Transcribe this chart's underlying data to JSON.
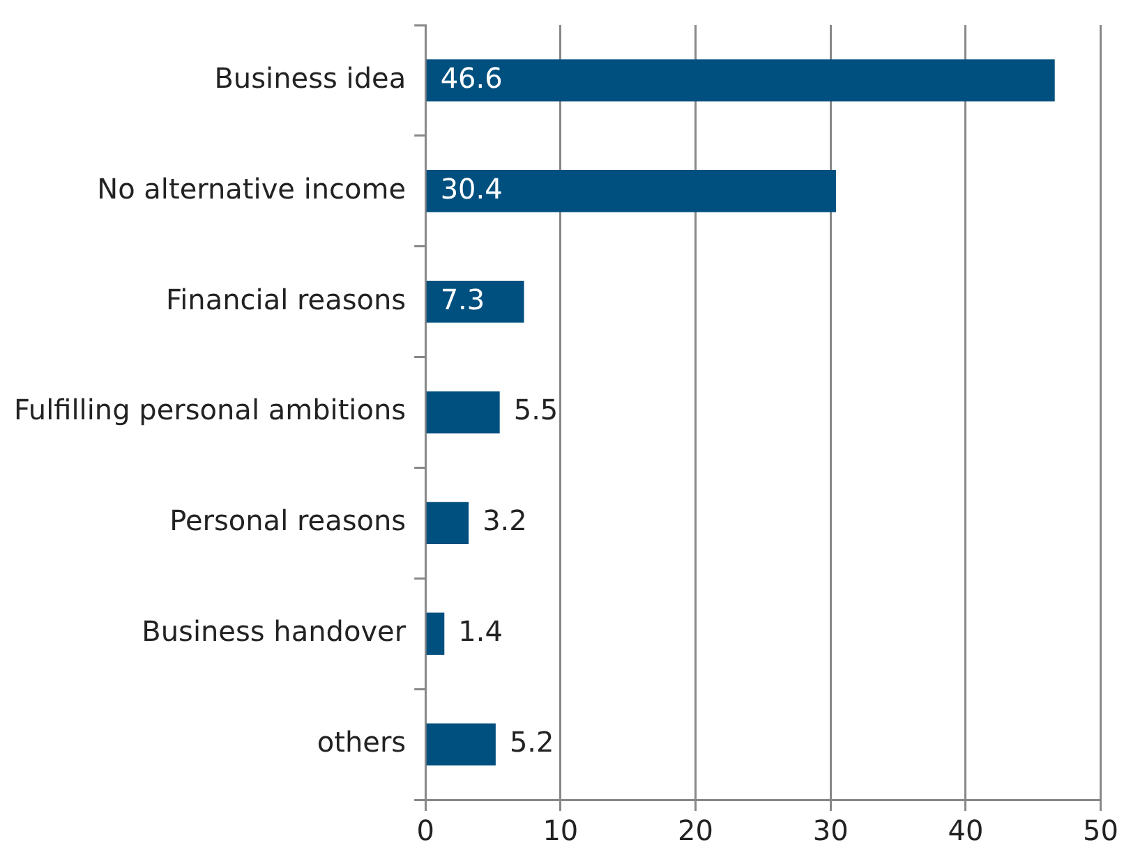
{
  "chart_data": {
    "type": "bar",
    "orientation": "horizontal",
    "categories": [
      "Business idea",
      "No alternative income",
      "Financial reasons",
      "Fulfilling personal ambitions",
      "Personal reasons",
      "Business handover",
      "others"
    ],
    "values": [
      46.6,
      30.4,
      7.3,
      5.5,
      3.2,
      1.4,
      5.2
    ],
    "color": "#00507f",
    "xlim": [
      0,
      50
    ],
    "xticks": [
      0,
      10,
      20,
      30,
      40,
      50
    ],
    "grid": "x",
    "data_labels": true,
    "legend": false
  }
}
